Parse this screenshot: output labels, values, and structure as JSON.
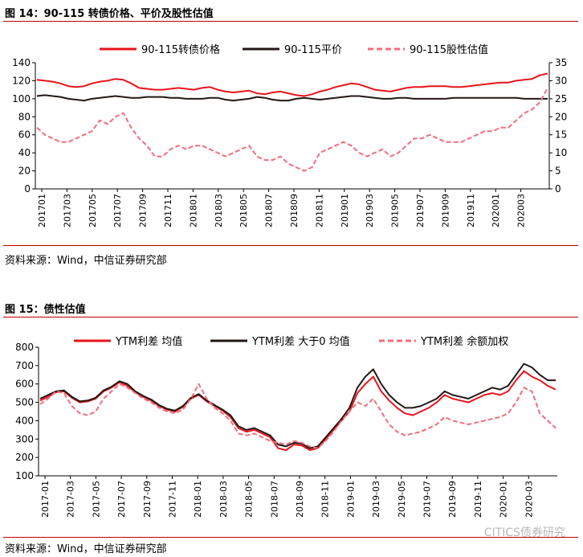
{
  "figure1": {
    "title": "图 14：90-115 转债价格、平价及股性估值",
    "source": "资料来源：Wind，中信证券研究部"
  },
  "figure2": {
    "title": "图 15：债性估值",
    "source": "资料来源：Wind，中信证券研究部"
  },
  "watermark": "CITICS债券研究",
  "colors": {
    "red": "#e8141c",
    "black": "#231815",
    "pink": "#f26d7d",
    "rule": "#c00000"
  },
  "chart_data": [
    {
      "type": "line",
      "x_labels": [
        "201701",
        "201703",
        "201705",
        "201707",
        "201709",
        "201711",
        "201801",
        "201803",
        "201805",
        "201807",
        "201809",
        "201811",
        "201901",
        "201903",
        "201905",
        "201907",
        "201909",
        "201911",
        "202001",
        "202003"
      ],
      "ylim_left": [
        0,
        140
      ],
      "yticks_left": [
        0,
        20,
        40,
        60,
        80,
        100,
        120,
        140
      ],
      "ylim_right": [
        0,
        35
      ],
      "yticks_right": [
        0,
        5,
        10,
        15,
        20,
        25,
        30,
        35
      ],
      "legend_position": "top",
      "grid": false,
      "series": [
        {
          "name": "90-115转债价格",
          "axis": "left",
          "color": "#e8141c",
          "style": "solid",
          "values": [
            121,
            120,
            119,
            117,
            114,
            113,
            114,
            117,
            119,
            120,
            122,
            121,
            117,
            112,
            111,
            110,
            110,
            111,
            112,
            111,
            110,
            112,
            113,
            110,
            108,
            107,
            108,
            109,
            106,
            105,
            107,
            108,
            106,
            104,
            103,
            105,
            108,
            110,
            113,
            115,
            117,
            116,
            113,
            110,
            109,
            108,
            110,
            112,
            113,
            113,
            114,
            114,
            114,
            113,
            113,
            114,
            115,
            116,
            117,
            118,
            118,
            120,
            121,
            122,
            126,
            128
          ]
        },
        {
          "name": "90-115平价",
          "axis": "left",
          "color": "#231815",
          "style": "solid",
          "values": [
            103,
            104,
            103,
            102,
            100,
            99,
            98,
            100,
            101,
            102,
            103,
            102,
            101,
            101,
            102,
            102,
            102,
            101,
            101,
            100,
            100,
            100,
            101,
            101,
            99,
            98,
            99,
            100,
            102,
            101,
            99,
            98,
            98,
            100,
            101,
            100,
            99,
            100,
            101,
            102,
            103,
            103,
            102,
            101,
            100,
            100,
            101,
            101,
            100,
            100,
            100,
            100,
            100,
            101,
            101,
            101,
            101,
            101,
            101,
            101,
            101,
            101,
            100,
            100,
            100,
            100
          ]
        },
        {
          "name": "90-115股性估值",
          "axis": "right",
          "color": "#f26d7d",
          "style": "dashed",
          "values": [
            17,
            15,
            14,
            13,
            13,
            14,
            15,
            16,
            19,
            18,
            20,
            21,
            17,
            14,
            12,
            9,
            9,
            11,
            12,
            11,
            12,
            12,
            11,
            10,
            9,
            10,
            11,
            12,
            9,
            8,
            8,
            9,
            7,
            6,
            5,
            6,
            10,
            11,
            12,
            13,
            12,
            10,
            9,
            10,
            11,
            9,
            10,
            12,
            14,
            14,
            15,
            14,
            13,
            13,
            13,
            14,
            15,
            16,
            16,
            17,
            17,
            19,
            21,
            22,
            24,
            28
          ]
        }
      ]
    },
    {
      "type": "line",
      "x_labels": [
        "2017-01",
        "2017-03",
        "2017-05",
        "2017-07",
        "2017-09",
        "2017-11",
        "2018-01",
        "2018-03",
        "2018-05",
        "2018-07",
        "2018-09",
        "2018-11",
        "2019-01",
        "2019-03",
        "2019-05",
        "2019-07",
        "2019-09",
        "2019-11",
        "2020-01",
        "2020-03"
      ],
      "ylim": [
        100,
        800
      ],
      "yticks": [
        100,
        200,
        300,
        400,
        500,
        600,
        700,
        800
      ],
      "legend_position": "top",
      "grid": false,
      "series": [
        {
          "name": "YTM利差 均值",
          "color": "#e8141c",
          "style": "solid",
          "values": [
            510,
            530,
            555,
            560,
            525,
            500,
            505,
            520,
            560,
            580,
            610,
            590,
            555,
            530,
            510,
            480,
            460,
            450,
            475,
            520,
            540,
            505,
            480,
            455,
            420,
            360,
            340,
            350,
            330,
            310,
            250,
            240,
            270,
            265,
            240,
            250,
            300,
            350,
            400,
            450,
            550,
            600,
            640,
            560,
            510,
            470,
            440,
            430,
            450,
            470,
            500,
            540,
            520,
            510,
            500,
            520,
            540,
            550,
            540,
            560,
            620,
            670,
            640,
            620,
            590,
            570
          ]
        },
        {
          "name": "YTM利差 大于0 均值",
          "color": "#231815",
          "style": "solid",
          "values": [
            520,
            540,
            560,
            565,
            530,
            505,
            510,
            525,
            565,
            585,
            615,
            600,
            560,
            535,
            515,
            485,
            465,
            455,
            480,
            525,
            545,
            510,
            485,
            460,
            430,
            370,
            350,
            360,
            340,
            320,
            270,
            260,
            280,
            275,
            250,
            260,
            310,
            360,
            410,
            470,
            580,
            640,
            680,
            600,
            540,
            500,
            470,
            470,
            480,
            500,
            520,
            560,
            540,
            530,
            520,
            540,
            560,
            580,
            570,
            590,
            650,
            710,
            690,
            650,
            620,
            620
          ]
        },
        {
          "name": "YTM利差 余额加权",
          "color": "#f26d7d",
          "style": "dashed",
          "values": [
            490,
            520,
            560,
            550,
            480,
            440,
            430,
            450,
            520,
            560,
            600,
            580,
            550,
            520,
            500,
            470,
            450,
            440,
            460,
            520,
            600,
            520,
            470,
            440,
            400,
            330,
            320,
            330,
            310,
            290,
            280,
            270,
            290,
            280,
            260,
            250,
            290,
            340,
            400,
            450,
            500,
            480,
            520,
            450,
            380,
            340,
            320,
            330,
            340,
            360,
            380,
            420,
            400,
            390,
            380,
            390,
            400,
            410,
            420,
            440,
            500,
            580,
            560,
            440,
            400,
            360
          ]
        }
      ]
    }
  ]
}
